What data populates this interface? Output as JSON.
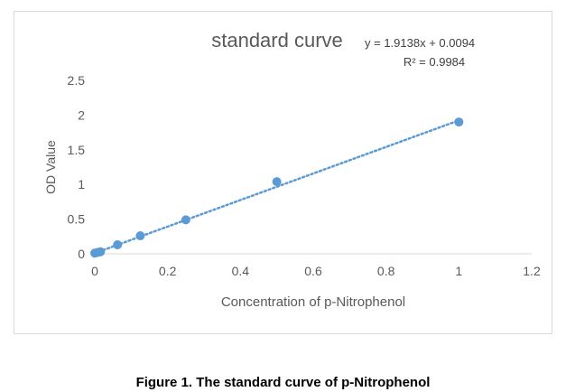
{
  "chart_data": {
    "type": "scatter",
    "title": "standard curve",
    "trendline": {
      "equation": "y = 1.9138x + 0.0094",
      "r_squared": "R² = 0.9984",
      "slope": 1.9138,
      "intercept": 0.0094,
      "style": "dotted",
      "color": "#5b9bd5"
    },
    "xlabel": "Concentration of  p-Nitrophenol",
    "ylabel": "OD Value",
    "xlim": [
      0,
      1.2
    ],
    "ylim": [
      0,
      2.5
    ],
    "x_ticks": [
      "0",
      "0.2",
      "0.4",
      "0.6",
      "0.8",
      "1",
      "1.2"
    ],
    "y_ticks": [
      "0",
      "0.5",
      "1",
      "1.5",
      "2",
      "2.5"
    ],
    "grid": false,
    "series": [
      {
        "color": "#5b9bd5",
        "x": [
          0,
          0.0078,
          0.0156,
          0.0625,
          0.125,
          0.25,
          0.5,
          1.0
        ],
        "y": [
          0.01,
          0.02,
          0.03,
          0.13,
          0.26,
          0.49,
          1.04,
          1.9
        ]
      }
    ]
  },
  "caption": "Figure 1. The standard curve of p-Nitrophenol"
}
